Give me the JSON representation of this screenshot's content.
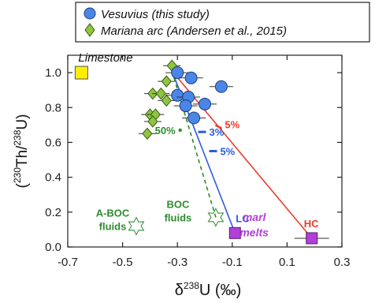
{
  "colors": {
    "vesuvius": "#4a86e8",
    "vesuvius_stroke": "#1f3f7a",
    "mariana": "#8cc63f",
    "mariana_stroke": "#3a5a14",
    "limestone": "#ffee00",
    "purple": "#b040d8",
    "red": "#ee3b2c",
    "blue": "#2d5be3",
    "green": "#2e8b2e"
  },
  "chart_data": {
    "type": "scatter",
    "title": "",
    "xlabel": "δ238U (‰)",
    "ylabel": "(230Th/238U)",
    "xlim": [
      -0.7,
      0.3
    ],
    "ylim": [
      0.0,
      1.1
    ],
    "xticks": [
      -0.7,
      -0.5,
      -0.3,
      -0.1,
      0.1,
      0.3
    ],
    "xtick_labels": [
      "-0.7",
      "-0.5",
      "-0.3",
      "-0.1",
      "0.1",
      "0.3"
    ],
    "yticks": [
      0.0,
      0.2,
      0.4,
      0.6,
      0.8,
      1.0
    ],
    "ytick_labels": [
      "0.0",
      "0.2",
      "0.4",
      "0.6",
      "0.8",
      "1.0"
    ],
    "grid": false,
    "legend_position": "top",
    "series": [
      {
        "name": "Vesuvius (this study)",
        "marker": "circle",
        "points": [
          {
            "x": -0.3,
            "y": 1.0
          },
          {
            "x": -0.25,
            "y": 0.97
          },
          {
            "x": -0.14,
            "y": 0.92
          },
          {
            "x": -0.3,
            "y": 0.87
          },
          {
            "x": -0.26,
            "y": 0.86
          },
          {
            "x": -0.2,
            "y": 0.82
          },
          {
            "x": -0.27,
            "y": 0.81
          },
          {
            "x": -0.24,
            "y": 0.74
          }
        ]
      },
      {
        "name": "Mariana arc (Andersen et al., 2015)",
        "marker": "diamond",
        "points": [
          {
            "x": -0.32,
            "y": 1.04
          },
          {
            "x": -0.34,
            "y": 0.95
          },
          {
            "x": -0.39,
            "y": 0.88
          },
          {
            "x": -0.36,
            "y": 0.88
          },
          {
            "x": -0.34,
            "y": 0.84
          },
          {
            "x": -0.4,
            "y": 0.76
          },
          {
            "x": -0.38,
            "y": 0.76
          },
          {
            "x": -0.39,
            "y": 0.72
          },
          {
            "x": -0.41,
            "y": 0.65
          }
        ]
      }
    ],
    "endmembers": [
      {
        "label": "Limestone",
        "x": -0.65,
        "y": 1.0,
        "marker": "square"
      },
      {
        "label": "LC",
        "x": -0.09,
        "y": 0.08,
        "marker": "square"
      },
      {
        "label": "HC",
        "x": 0.19,
        "y": 0.05,
        "marker": "square"
      },
      {
        "label": "A-BOC fluids",
        "x": -0.45,
        "y": 0.12,
        "marker": "star"
      },
      {
        "label": "BOC fluids",
        "x": -0.16,
        "y": 0.17,
        "marker": "star"
      }
    ],
    "mixing_lines": [
      {
        "label": "red",
        "from": {
          "x": -0.32,
          "y": 1.01
        },
        "to": {
          "x": 0.19,
          "y": 0.05
        },
        "ticks": [
          {
            "label": "5%",
            "x": -0.15,
            "y": 0.69
          }
        ]
      },
      {
        "label": "blue",
        "from": {
          "x": -0.32,
          "y": 1.01
        },
        "to": {
          "x": -0.09,
          "y": 0.08
        },
        "ticks": [
          {
            "label": "3%",
            "x": -0.21,
            "y": 0.66
          },
          {
            "label": "5%",
            "x": -0.17,
            "y": 0.55
          }
        ]
      },
      {
        "label": "green",
        "from": {
          "x": -0.32,
          "y": 1.01
        },
        "to": {
          "x": -0.16,
          "y": 0.17
        },
        "dashed": true,
        "ticks": [
          {
            "label": "50%",
            "x": -0.29,
            "y": 0.67
          }
        ]
      }
    ],
    "annotations": [
      {
        "text": "marl",
        "x": -0.02,
        "y": 0.15
      },
      {
        "text": "melts",
        "x": -0.02,
        "y": 0.06
      }
    ]
  }
}
